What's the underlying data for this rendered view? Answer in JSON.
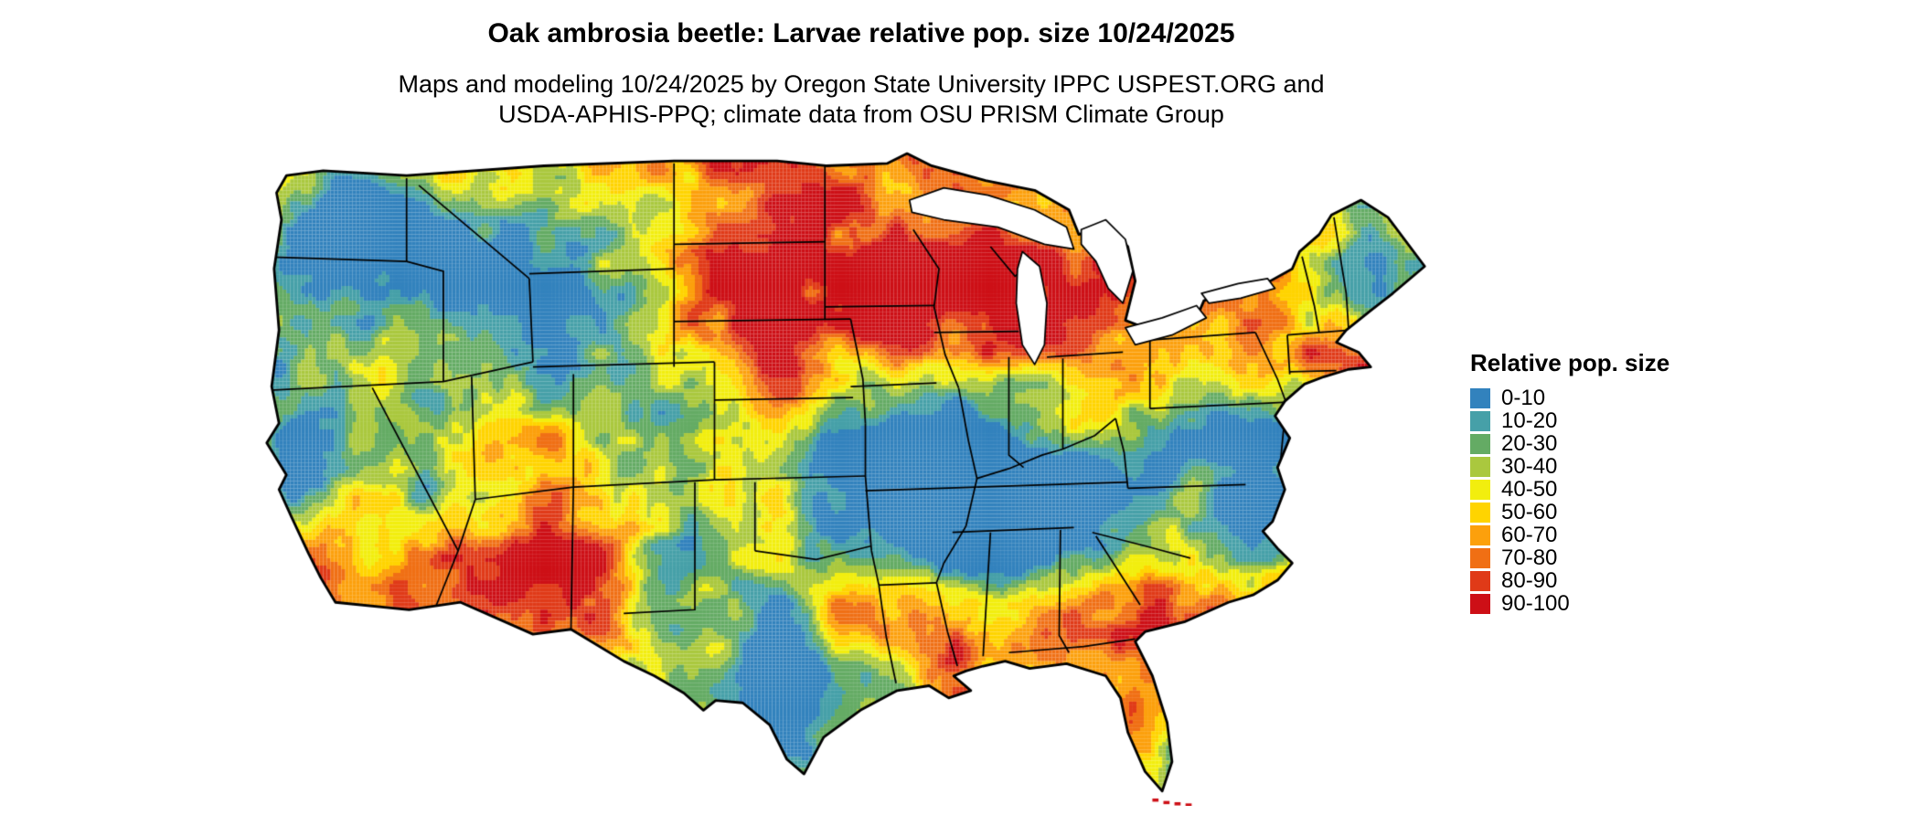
{
  "page": {
    "title": "Oak ambrosia beetle: Larvae relative pop. size 10/24/2025",
    "subtitle_line1": "Maps and modeling 10/24/2025 by Oregon State University IPPC USPEST.ORG and",
    "subtitle_line2": "USDA-APHIS-PPQ; climate data from OSU PRISM Climate Group"
  },
  "legend": {
    "title": "Relative pop. size",
    "bins": [
      {
        "label": "0-10",
        "color": "#3282bd"
      },
      {
        "label": "10-20",
        "color": "#46a0a8"
      },
      {
        "label": "20-30",
        "color": "#64ab64"
      },
      {
        "label": "30-40",
        "color": "#aac83e"
      },
      {
        "label": "40-50",
        "color": "#f2ee0e"
      },
      {
        "label": "50-60",
        "color": "#ffd400"
      },
      {
        "label": "60-70",
        "color": "#fca00c"
      },
      {
        "label": "70-80",
        "color": "#f06f14"
      },
      {
        "label": "80-90",
        "color": "#e03a18"
      },
      {
        "label": "90-100",
        "color": "#cd0f16"
      }
    ]
  },
  "map": {
    "region_label": "Contiguous United States raster map",
    "outline_color": "#000000",
    "water_color": "#ffffff"
  }
}
